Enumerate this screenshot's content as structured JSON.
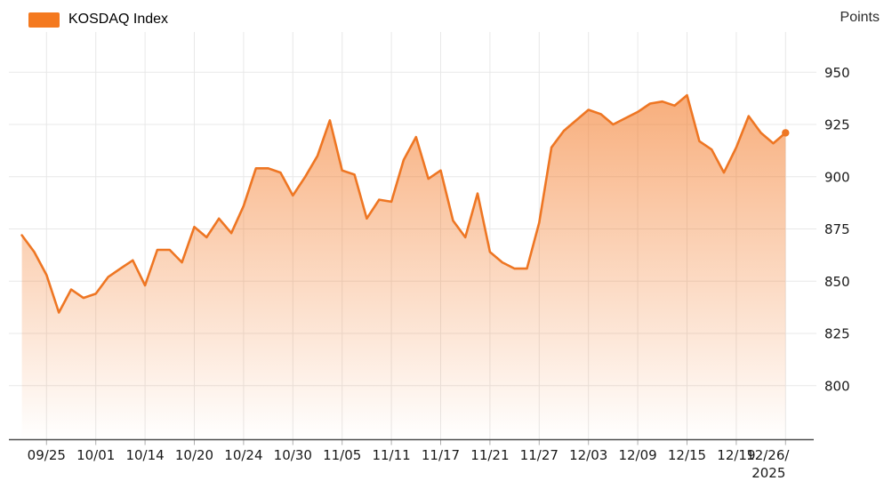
{
  "chart": {
    "legend": {
      "label": "KOSDAQ Index",
      "swatch_color": "#F4791F"
    },
    "y_axis": {
      "title": "Points"
    }
  },
  "chart_data": {
    "type": "area",
    "title": "KOSDAQ Index",
    "ylabel": "Points",
    "xlabel": "",
    "grid": true,
    "legend_position": "top-left",
    "y_ticks": [
      950,
      925,
      900,
      875,
      850,
      825,
      800
    ],
    "ylim_rendered": [
      774,
      969
    ],
    "x_tick_labels": [
      "09/25",
      "10/01",
      "10/14",
      "10/20",
      "10/24",
      "10/30",
      "11/05",
      "11/11",
      "11/17",
      "11/21",
      "11/27",
      "12/03",
      "12/09",
      "12/15",
      "12/19",
      "12/26/\n2025"
    ],
    "x_tick_indices": [
      2,
      6,
      10,
      14,
      18,
      22,
      26,
      30,
      34,
      38,
      42,
      46,
      50,
      54,
      58,
      62
    ],
    "series": [
      {
        "name": "KOSDAQ Index",
        "values": [
          872,
          864,
          853,
          835,
          846,
          842,
          844,
          852,
          856,
          860,
          848,
          865,
          865,
          859,
          876,
          871,
          880,
          873,
          886,
          904,
          904,
          902,
          891,
          900,
          910,
          927,
          903,
          901,
          880,
          889,
          888,
          908,
          919,
          899,
          903,
          879,
          871,
          892,
          864,
          859,
          856,
          856,
          878,
          914,
          922,
          927,
          932,
          930,
          925,
          928,
          931,
          935,
          936,
          934,
          939,
          917,
          913,
          902,
          914,
          929,
          921,
          916,
          921
        ]
      }
    ],
    "line_color": "#EE7623",
    "area_fill_color": "243,121,38",
    "area_fill_top_opacity": 0.65,
    "grid_color": "#E8E8E8",
    "axis_line_color": "#4F4F4F",
    "tick_mark_color": "#ADADAD",
    "label_color": "#191919",
    "last_point_marker": true
  }
}
